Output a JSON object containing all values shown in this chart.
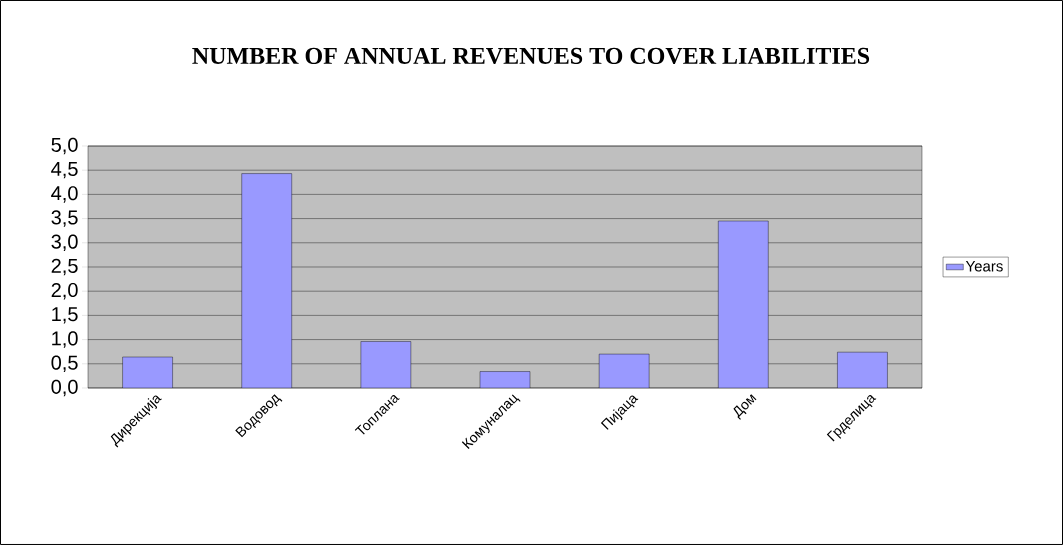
{
  "chart_data": {
    "type": "bar",
    "title": "NUMBER OF ANNUAL REVENUES TO COVER LIABILITIES",
    "categories": [
      "Дирекција",
      "Водовод",
      "Топлана",
      "Комуналац",
      "Пијаца",
      "Дом",
      "Грделица"
    ],
    "series": [
      {
        "name": "Years",
        "color": "#9999ff",
        "values": [
          0.64,
          4.43,
          0.96,
          0.34,
          0.7,
          3.45,
          0.74
        ]
      }
    ],
    "ylim": [
      0,
      5
    ],
    "yticks": [
      {
        "value": 0,
        "label": "0,0"
      },
      {
        "value": 0.5,
        "label": "0,5"
      },
      {
        "value": 1,
        "label": "1,0"
      },
      {
        "value": 1.5,
        "label": "1,5"
      },
      {
        "value": 2,
        "label": "2,0"
      },
      {
        "value": 2.5,
        "label": "2,5"
      },
      {
        "value": 3,
        "label": "3,0"
      },
      {
        "value": 3.5,
        "label": "3,5"
      },
      {
        "value": 4,
        "label": "4,0"
      },
      {
        "value": 4.5,
        "label": "4,5"
      },
      {
        "value": 5,
        "label": "5,0"
      }
    ],
    "grid": "y",
    "legend": "right"
  }
}
